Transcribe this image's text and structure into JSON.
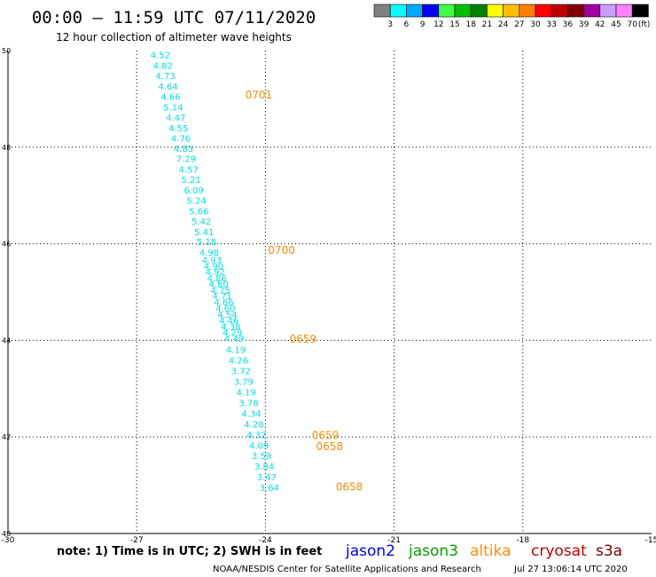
{
  "header": {
    "title": "00:00 — 11:59 UTC 07/11/2020",
    "subtitle": "12 hour collection of altimeter wave heights"
  },
  "legend": {
    "unit": "(ft)",
    "colors": [
      "#808080",
      "#00ffff",
      "#00a8ff",
      "#0000ff",
      "#40ff40",
      "#00c000",
      "#008000",
      "#ffff00",
      "#ffc000",
      "#ff8000",
      "#ff0000",
      "#c00000",
      "#800000",
      "#a000a0",
      "#c8a0ff",
      "#ff80ff",
      "#000000"
    ],
    "labels": [
      "3",
      "6",
      "9",
      "12",
      "15",
      "18",
      "21",
      "24",
      "27",
      "30",
      "33",
      "36",
      "39",
      "42",
      "45",
      "70"
    ]
  },
  "footer": {
    "note": "note: 1) Time is in UTC; 2) SWH is in feet",
    "credit": "NOAA/NESDIS Center for Satellite Applications and Research",
    "timestamp": "Jul 27 13:06:14 UTC 2020",
    "satellites": [
      {
        "name": "jason2",
        "color": "#0000ff"
      },
      {
        "name": "jason3",
        "color": "#00a000"
      },
      {
        "name": "altika",
        "color": "#ff8c00"
      },
      {
        "name": "cryosat",
        "color": "#c00000"
      },
      {
        "name": "s3a",
        "color": "#800000"
      }
    ]
  },
  "chart_data": {
    "type": "scatter",
    "xlim": [
      -30,
      -15
    ],
    "ylim": [
      40,
      50
    ],
    "x_ticks": [
      -30,
      -27,
      -24,
      -21,
      -18,
      -15
    ],
    "x_tick_labels": [
      "-30",
      "-27",
      "-24",
      "-21",
      "-18",
      "-15"
    ],
    "y_ticks": [
      40,
      42,
      44,
      46,
      48,
      50
    ],
    "y_tick_labels": [
      "40",
      "42",
      "44",
      "46",
      "48",
      "50"
    ],
    "grid": true,
    "label_color": "#00e0e8",
    "time_color": "#ff8c00",
    "points": [
      {
        "x": -26.68,
        "y": 49.84,
        "v": "4.52"
      },
      {
        "x": -26.62,
        "y": 49.62,
        "v": "4.82"
      },
      {
        "x": -26.56,
        "y": 49.41,
        "v": "4.73"
      },
      {
        "x": -26.5,
        "y": 49.19,
        "v": "4.64"
      },
      {
        "x": -26.44,
        "y": 48.98,
        "v": "4.66"
      },
      {
        "x": -26.38,
        "y": 48.76,
        "v": "5.14"
      },
      {
        "x": -26.32,
        "y": 48.55,
        "v": "4.47"
      },
      {
        "x": -26.26,
        "y": 48.33,
        "v": "4.55"
      },
      {
        "x": -26.2,
        "y": 48.12,
        "v": "4.76"
      },
      {
        "x": -26.14,
        "y": 47.9,
        "v": "4.83"
      },
      {
        "x": -26.08,
        "y": 47.69,
        "v": "7.29"
      },
      {
        "x": -26.02,
        "y": 47.47,
        "v": "4.57"
      },
      {
        "x": -25.96,
        "y": 47.26,
        "v": "5.21"
      },
      {
        "x": -25.9,
        "y": 47.04,
        "v": "6.09"
      },
      {
        "x": -25.84,
        "y": 46.83,
        "v": "5.24"
      },
      {
        "x": -25.78,
        "y": 46.61,
        "v": "5.66"
      },
      {
        "x": -25.72,
        "y": 46.4,
        "v": "5.42"
      },
      {
        "x": -25.66,
        "y": 46.18,
        "v": "5.41"
      },
      {
        "x": -25.6,
        "y": 45.97,
        "v": "5.18"
      },
      {
        "x": -25.54,
        "y": 45.75,
        "v": "4.98"
      },
      {
        "x": -25.48,
        "y": 45.6,
        "v": "4.93"
      },
      {
        "x": -25.44,
        "y": 45.47,
        "v": "4.90"
      },
      {
        "x": -25.4,
        "y": 45.35,
        "v": "4.92"
      },
      {
        "x": -25.36,
        "y": 45.22,
        "v": "4.86"
      },
      {
        "x": -25.32,
        "y": 45.1,
        "v": "4.80"
      },
      {
        "x": -25.28,
        "y": 44.97,
        "v": "4.75"
      },
      {
        "x": -25.24,
        "y": 44.85,
        "v": "4.71"
      },
      {
        "x": -25.2,
        "y": 44.72,
        "v": "4.66"
      },
      {
        "x": -25.16,
        "y": 44.6,
        "v": "4.60"
      },
      {
        "x": -25.12,
        "y": 44.47,
        "v": "4.54"
      },
      {
        "x": -25.08,
        "y": 44.35,
        "v": "4.46"
      },
      {
        "x": -25.04,
        "y": 44.22,
        "v": "4.38"
      },
      {
        "x": -25.0,
        "y": 44.1,
        "v": "4.29"
      },
      {
        "x": -24.96,
        "y": 43.97,
        "v": "4.49"
      },
      {
        "x": -24.92,
        "y": 43.74,
        "v": "4.19"
      },
      {
        "x": -24.86,
        "y": 43.52,
        "v": "4.26"
      },
      {
        "x": -24.8,
        "y": 43.3,
        "v": "3.72"
      },
      {
        "x": -24.74,
        "y": 43.08,
        "v": "3.79"
      },
      {
        "x": -24.68,
        "y": 42.86,
        "v": "4.19"
      },
      {
        "x": -24.62,
        "y": 42.64,
        "v": "3.78"
      },
      {
        "x": -24.56,
        "y": 42.42,
        "v": "4.34"
      },
      {
        "x": -24.5,
        "y": 42.2,
        "v": "4.28"
      },
      {
        "x": -24.44,
        "y": 41.98,
        "v": "4.32"
      },
      {
        "x": -24.38,
        "y": 41.76,
        "v": "4.09"
      },
      {
        "x": -24.32,
        "y": 41.54,
        "v": "3.59"
      },
      {
        "x": -24.26,
        "y": 41.32,
        "v": "3.84"
      },
      {
        "x": -24.2,
        "y": 41.1,
        "v": "3.47"
      },
      {
        "x": -24.14,
        "y": 40.88,
        "v": "3.64"
      }
    ],
    "time_labels": [
      {
        "x": -24.47,
        "y": 49.01,
        "t": "0701"
      },
      {
        "x": -23.94,
        "y": 45.79,
        "t": "0700"
      },
      {
        "x": -23.44,
        "y": 43.95,
        "t": "0659"
      },
      {
        "x": -22.92,
        "y": 41.96,
        "t": "0659"
      },
      {
        "x": -22.82,
        "y": 41.73,
        "t": "0658"
      },
      {
        "x": -22.36,
        "y": 40.89,
        "t": "0658"
      }
    ]
  }
}
